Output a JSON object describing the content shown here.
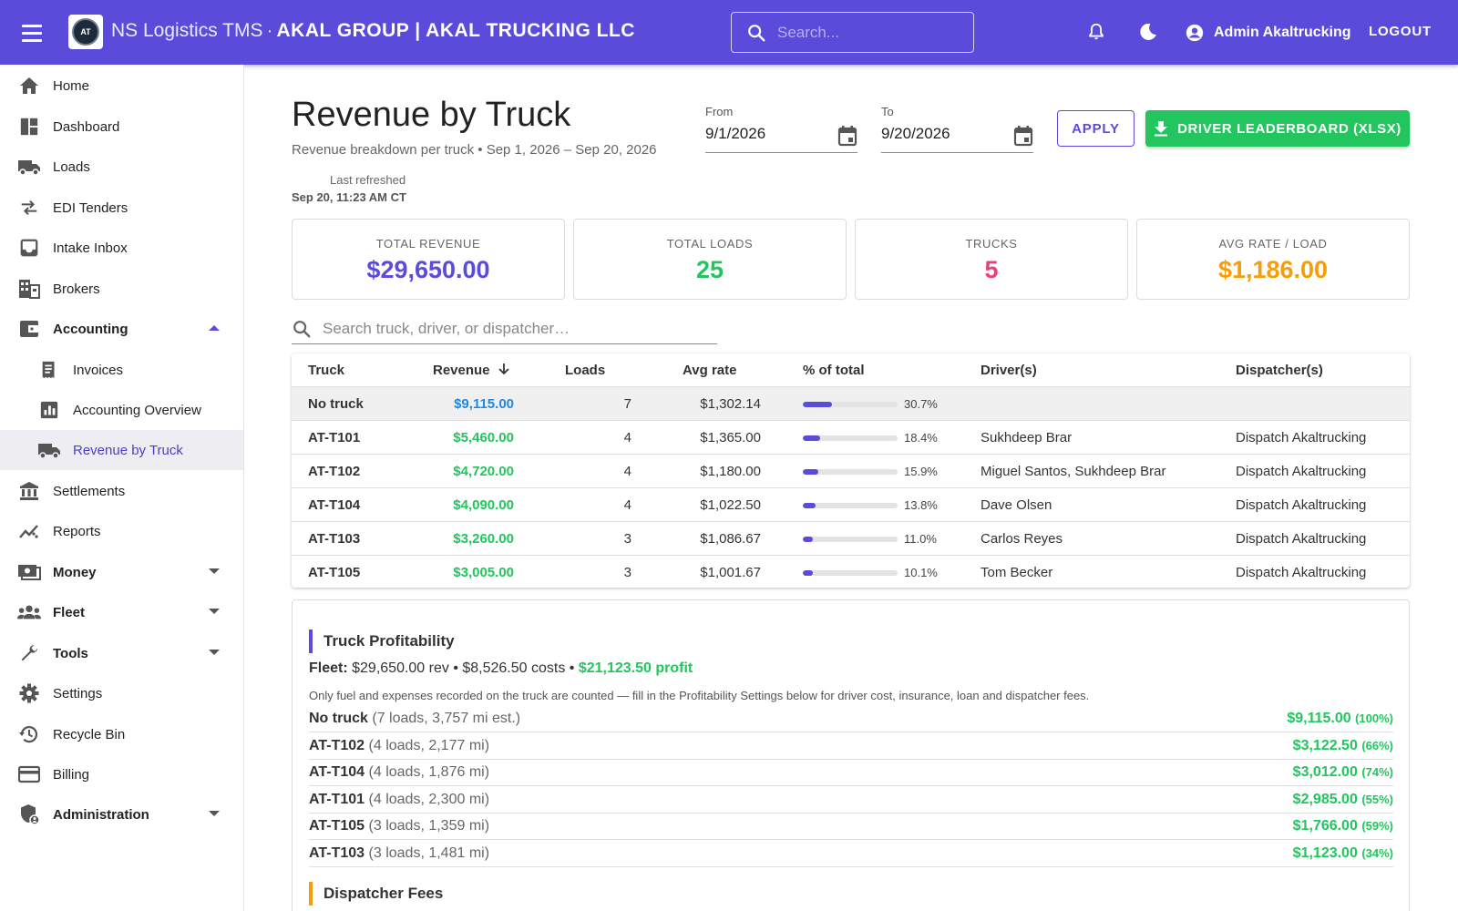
{
  "topbar": {
    "app_name": "NS Logistics TMS",
    "separator": "·",
    "company": "AKAL GROUP | AKAL TRUCKING LLC",
    "logo_text": "AT",
    "search_placeholder": "Search...",
    "user_name": "Admin Akaltrucking",
    "logout_label": "LOGOUT"
  },
  "sidebar": {
    "items": [
      {
        "label": "Home",
        "icon": "home-icon"
      },
      {
        "label": "Dashboard",
        "icon": "dashboard-icon"
      },
      {
        "label": "Loads",
        "icon": "truck-icon"
      },
      {
        "label": "EDI Tenders",
        "icon": "swap-icon"
      },
      {
        "label": "Intake Inbox",
        "icon": "inbox-icon"
      },
      {
        "label": "Brokers",
        "icon": "building-icon"
      },
      {
        "label": "Accounting",
        "icon": "wallet-icon",
        "expanded": true
      },
      {
        "label": "Invoices",
        "icon": "receipt-icon",
        "sub": true
      },
      {
        "label": "Accounting Overview",
        "icon": "bar-chart-icon",
        "sub": true
      },
      {
        "label": "Revenue by Truck",
        "icon": "truck-icon",
        "sub": true,
        "active": true
      },
      {
        "label": "Settlements",
        "icon": "bank-icon"
      },
      {
        "label": "Reports",
        "icon": "trending-icon"
      },
      {
        "label": "Money",
        "icon": "money-icon",
        "collapsed": true
      },
      {
        "label": "Fleet",
        "icon": "group-icon",
        "collapsed": true
      },
      {
        "label": "Tools",
        "icon": "wrench-icon",
        "collapsed": true
      },
      {
        "label": "Settings",
        "icon": "gear-icon"
      },
      {
        "label": "Recycle Bin",
        "icon": "history-icon"
      },
      {
        "label": "Billing",
        "icon": "credit-card-icon"
      },
      {
        "label": "Administration",
        "icon": "admin-shield-icon",
        "collapsed": true
      }
    ]
  },
  "page": {
    "title": "Revenue by Truck",
    "subtitle": "Revenue breakdown per truck • Sep 1, 2026 – Sep 20, 2026",
    "last_refreshed_label": "Last refreshed",
    "last_refreshed_time": "Sep 20, 11:23 AM CT"
  },
  "filters": {
    "from_label": "From",
    "from_value": "9/1/2026",
    "to_label": "To",
    "to_value": "9/20/2026",
    "apply_label": "APPLY",
    "export_label": "DRIVER LEADERBOARD (XLSX)"
  },
  "kpis": [
    {
      "label": "TOTAL REVENUE",
      "value": "$29,650.00",
      "color": "#5b4bdb"
    },
    {
      "label": "TOTAL LOADS",
      "value": "25",
      "color": "#22c55e"
    },
    {
      "label": "TRUCKS",
      "value": "5",
      "color": "#ec407a"
    },
    {
      "label": "AVG RATE / LOAD",
      "value": "$1,186.00",
      "color": "#f59e0b"
    }
  ],
  "table": {
    "search_placeholder": "Search truck, driver, or dispatcher…",
    "headers": [
      "Truck",
      "Revenue",
      "Loads",
      "Avg rate",
      "% of total",
      "Driver(s)",
      "Dispatcher(s)"
    ],
    "rows": [
      {
        "truck": "No truck",
        "revenue": "$9,115.00",
        "loads": "7",
        "avg": "$1,302.14",
        "pct_value": 30.7,
        "pct": "30.7%",
        "drivers": "",
        "dispatchers": "",
        "revenue_color": "#1e88e5",
        "highlight": true
      },
      {
        "truck": "AT-T101",
        "revenue": "$5,460.00",
        "loads": "4",
        "avg": "$1,365.00",
        "pct_value": 18.4,
        "pct": "18.4%",
        "drivers": "Sukhdeep Brar",
        "dispatchers": "Dispatch Akaltrucking",
        "revenue_color": "#22c55e"
      },
      {
        "truck": "AT-T102",
        "revenue": "$4,720.00",
        "loads": "4",
        "avg": "$1,180.00",
        "pct_value": 15.9,
        "pct": "15.9%",
        "drivers": "Miguel Santos, Sukhdeep Brar",
        "dispatchers": "Dispatch Akaltrucking",
        "revenue_color": "#22c55e"
      },
      {
        "truck": "AT-T104",
        "revenue": "$4,090.00",
        "loads": "4",
        "avg": "$1,022.50",
        "pct_value": 13.8,
        "pct": "13.8%",
        "drivers": "Dave Olsen",
        "dispatchers": "Dispatch Akaltrucking",
        "revenue_color": "#22c55e"
      },
      {
        "truck": "AT-T103",
        "revenue": "$3,260.00",
        "loads": "3",
        "avg": "$1,086.67",
        "pct_value": 11.0,
        "pct": "11.0%",
        "drivers": "Carlos Reyes",
        "dispatchers": "Dispatch Akaltrucking",
        "revenue_color": "#22c55e"
      },
      {
        "truck": "AT-T105",
        "revenue": "$3,005.00",
        "loads": "3",
        "avg": "$1,001.67",
        "pct_value": 10.1,
        "pct": "10.1%",
        "drivers": "Tom Becker",
        "dispatchers": "Dispatch Akaltrucking",
        "revenue_color": "#22c55e"
      }
    ]
  },
  "profitability": {
    "title": "Truck Profitability",
    "fleet_label": "Fleet:",
    "fleet_summary": "$29,650.00 rev • $8,526.50 costs •",
    "fleet_profit": "$21,123.50 profit",
    "note": "Only fuel and expenses recorded on the truck are counted — fill in the Profitability Settings below for driver cost, insurance, loan and dispatcher fees.",
    "rows": [
      {
        "truck": "No truck",
        "detail": "(7 loads, 3,757 mi est.)",
        "profit": "$9,115.00",
        "pct": "(100%)"
      },
      {
        "truck": "AT-T102",
        "detail": "(4 loads, 2,177 mi)",
        "profit": "$3,122.50",
        "pct": "(66%)"
      },
      {
        "truck": "AT-T104",
        "detail": "(4 loads, 1,876 mi)",
        "profit": "$3,012.00",
        "pct": "(74%)"
      },
      {
        "truck": "AT-T101",
        "detail": "(4 loads, 2,300 mi)",
        "profit": "$2,985.00",
        "pct": "(55%)"
      },
      {
        "truck": "AT-T105",
        "detail": "(3 loads, 1,359 mi)",
        "profit": "$1,766.00",
        "pct": "(59%)"
      },
      {
        "truck": "AT-T103",
        "detail": "(3 loads, 1,481 mi)",
        "profit": "$1,123.00",
        "pct": "(34%)"
      }
    ],
    "dispatcher_fees_title": "Dispatcher Fees"
  }
}
